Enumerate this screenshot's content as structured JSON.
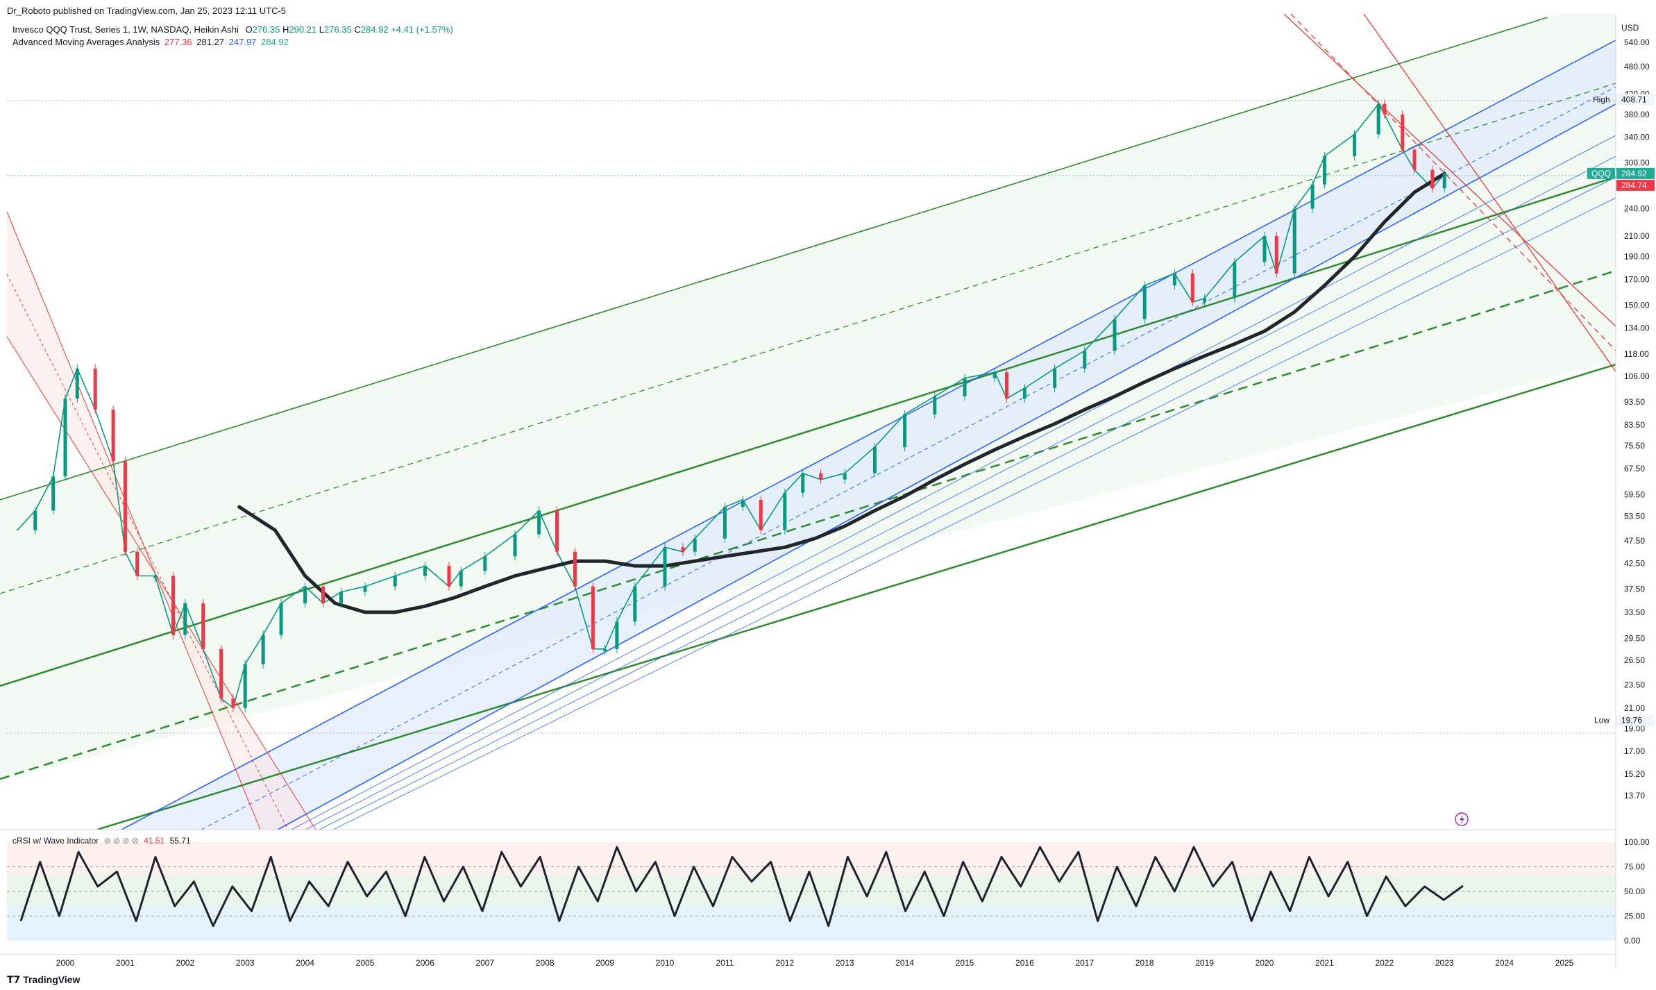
{
  "header": {
    "published": "Dr_Roboto published on TradingView.com, Jan 25, 2023 12:11 UTC-5",
    "symbol_desc": "Invesco QQQ Trust, Series 1, 1W, NASDAQ, Heikin Ashi",
    "ohlc": {
      "o_label": "O",
      "o": "276.35",
      "h_label": "H",
      "h": "290.21",
      "l_label": "L",
      "l": "276.35",
      "c_label": "C",
      "c": "284.92",
      "chg": "+4.41 (+1.57%)"
    },
    "ma_name": "Advanced Moving Averages Analysis",
    "ma_values": [
      "277.36",
      "281.27",
      "247.97",
      "284.92"
    ]
  },
  "oscillator": {
    "name": "cRSI w/ Wave Indicator",
    "icons": "⊘ ⊘ ⊘ ⊘",
    "values": [
      "41.51",
      "55.71"
    ]
  },
  "footer": {
    "brand": "TradingView"
  },
  "colors": {
    "up": "#089981",
    "down": "#f23645",
    "green_channel": "#2e8b2e",
    "blue_channel": "#2962ff",
    "red_channel": "#e53935",
    "ma_black": "#22252b"
  },
  "chart_data": {
    "type": "line",
    "title": "Invesco QQQ Trust, Series 1, 1W, NASDAQ, Heikin Ashi",
    "xlabel": "",
    "ylabel": "",
    "currency": "USD",
    "scale": "log",
    "ylim": [
      12.0,
      600.0
    ],
    "x_ticks": [
      "2000",
      "2001",
      "2002",
      "2003",
      "2004",
      "2005",
      "2006",
      "2007",
      "2008",
      "2009",
      "2010",
      "2011",
      "2012",
      "2013",
      "2014",
      "2015",
      "2016",
      "2017",
      "2018",
      "2019",
      "2020",
      "2021",
      "2022",
      "2023",
      "2024",
      "2025"
    ],
    "y_ticks": [
      "540.00",
      "480.00",
      "420.00",
      "380.00",
      "340.00",
      "300.00",
      "240.00",
      "210.00",
      "190.00",
      "170.00",
      "150.00",
      "134.00",
      "118.00",
      "106.00",
      "93.50",
      "83.50",
      "75.50",
      "67.50",
      "59.50",
      "53.50",
      "47.50",
      "42.50",
      "37.50",
      "33.50",
      "29.50",
      "26.50",
      "23.50",
      "21.00",
      "19.00",
      "17.00",
      "15.20",
      "13.70"
    ],
    "price_labels": {
      "symbol": "QQQ",
      "last": "284.92",
      "ma": "284.74",
      "high_label": "High",
      "high": "408.71",
      "low_label": "Low",
      "low": "19.76"
    },
    "series": [
      {
        "name": "QQQ",
        "x": [
          1999.2,
          1999.5,
          1999.8,
          2000.0,
          2000.2,
          2000.5,
          2000.8,
          2001.0,
          2001.2,
          2001.5,
          2001.8,
          2002.0,
          2002.3,
          2002.6,
          2002.8,
          2003.0,
          2003.3,
          2003.6,
          2004.0,
          2004.3,
          2004.6,
          2005.0,
          2005.5,
          2006.0,
          2006.4,
          2006.6,
          2007.0,
          2007.5,
          2007.9,
          2008.2,
          2008.5,
          2008.8,
          2009.0,
          2009.2,
          2009.5,
          2010.0,
          2010.3,
          2010.5,
          2011.0,
          2011.3,
          2011.6,
          2012.0,
          2012.3,
          2012.6,
          2013.0,
          2013.5,
          2014.0,
          2014.5,
          2015.0,
          2015.5,
          2015.7,
          2016.0,
          2016.5,
          2017.0,
          2017.5,
          2018.0,
          2018.5,
          2018.8,
          2019.0,
          2019.5,
          2020.0,
          2020.2,
          2020.5,
          2020.8,
          2021.0,
          2021.5,
          2021.9,
          2022.0,
          2022.3,
          2022.5,
          2022.8,
          2023.0
        ],
        "values": [
          50,
          55,
          65,
          95,
          110,
          90,
          70,
          45,
          40,
          40,
          30,
          35,
          28,
          22,
          21,
          26,
          30,
          35,
          38,
          35,
          37,
          38,
          40,
          42,
          38,
          41,
          44,
          49,
          55,
          45,
          38,
          28,
          28,
          32,
          38,
          46,
          45,
          48,
          56,
          58,
          50,
          60,
          66,
          64,
          66,
          75,
          88,
          96,
          105,
          108,
          95,
          100,
          110,
          120,
          140,
          165,
          175,
          152,
          155,
          185,
          210,
          175,
          240,
          270,
          310,
          345,
          400,
          380,
          320,
          290,
          265,
          284.92
        ]
      },
      {
        "name": "Long-term MA",
        "x": [
          2002.9,
          2003.5,
          2004.0,
          2004.5,
          2005.0,
          2005.5,
          2006.0,
          2006.5,
          2007.0,
          2007.5,
          2008.0,
          2008.5,
          2009.0,
          2009.5,
          2010.0,
          2010.5,
          2011.0,
          2011.5,
          2012.0,
          2012.5,
          2013.0,
          2013.5,
          2014.0,
          2014.5,
          2015.0,
          2015.5,
          2016.0,
          2016.5,
          2017.0,
          2017.5,
          2018.0,
          2018.5,
          2019.0,
          2019.5,
          2020.0,
          2020.5,
          2021.0,
          2021.5,
          2022.0,
          2022.5,
          2023.0
        ],
        "values": [
          56,
          50,
          40,
          35,
          33.5,
          33.5,
          34.5,
          36,
          38,
          40,
          41.5,
          43,
          43,
          42,
          42,
          43,
          44,
          45,
          46,
          48,
          51,
          55,
          59,
          64,
          69,
          74,
          79,
          84,
          90,
          96,
          103,
          110,
          117,
          124,
          132,
          145,
          165,
          190,
          225,
          260,
          284.74
        ]
      }
    ],
    "oscillator": {
      "name": "cRSI w/ Wave Indicator",
      "ylim": [
        0,
        100
      ],
      "y_ticks": [
        "100.00",
        "75.00",
        "50.00",
        "25.00",
        "0.00"
      ],
      "values": [
        20,
        80,
        25,
        90,
        55,
        70,
        20,
        85,
        35,
        60,
        15,
        55,
        30,
        85,
        20,
        60,
        35,
        80,
        45,
        70,
        25,
        85,
        40,
        75,
        30,
        90,
        55,
        85,
        20,
        75,
        40,
        95,
        50,
        80,
        25,
        75,
        35,
        85,
        60,
        80,
        20,
        70,
        15,
        85,
        45,
        90,
        30,
        70,
        25,
        80,
        40,
        85,
        55,
        95,
        60,
        90,
        20,
        75,
        35,
        85,
        50,
        95,
        55,
        80,
        20,
        70,
        30,
        85,
        45,
        80,
        25,
        65,
        35,
        55,
        41.51,
        55.71
      ]
    }
  }
}
